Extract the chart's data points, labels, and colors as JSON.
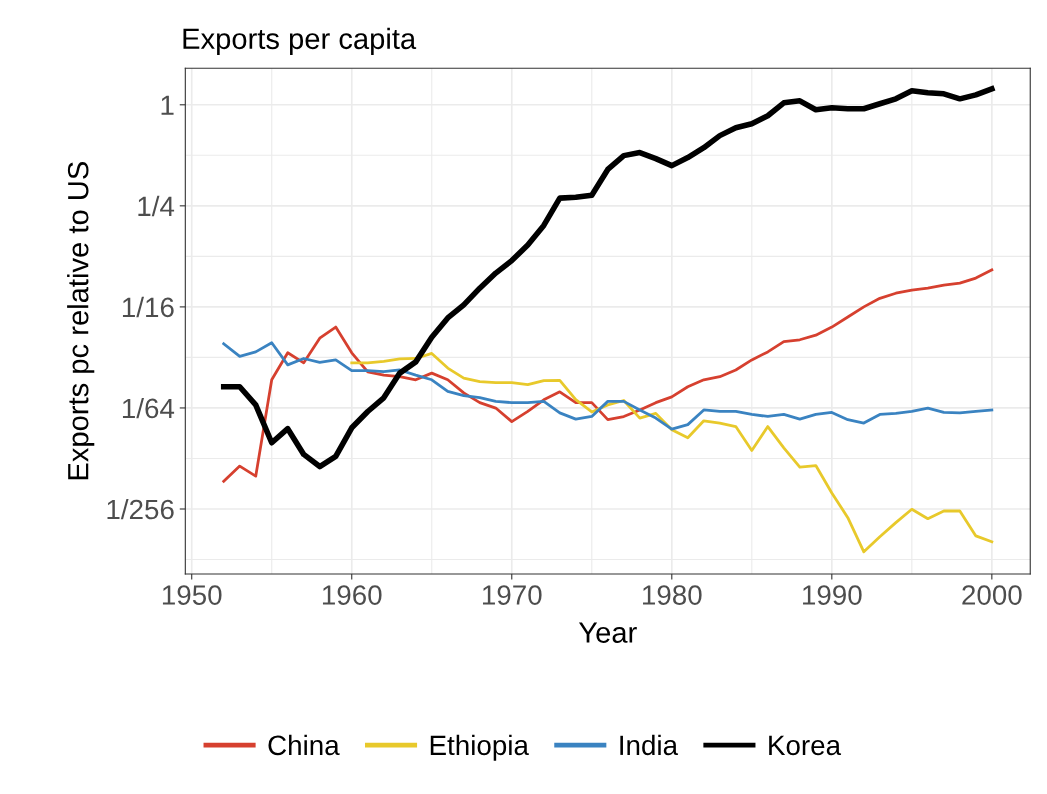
{
  "chart_data": {
    "type": "line",
    "title": "Exports per capita",
    "xlabel": "Year",
    "ylabel": "Exports pc relative to US",
    "x": [
      1952,
      1953,
      1954,
      1955,
      1956,
      1957,
      1958,
      1959,
      1960,
      1961,
      1962,
      1963,
      1964,
      1965,
      1966,
      1967,
      1968,
      1969,
      1970,
      1971,
      1972,
      1973,
      1974,
      1975,
      1976,
      1977,
      1978,
      1979,
      1980,
      1981,
      1982,
      1983,
      1984,
      1985,
      1986,
      1987,
      1988,
      1989,
      1990,
      1991,
      1992,
      1993,
      1994,
      1995,
      1996,
      1997,
      1998,
      1999,
      2000
    ],
    "series": [
      {
        "name": "China",
        "color": "#d6402f",
        "values": [
          0.00572,
          0.00704,
          0.00613,
          0.023,
          0.0333,
          0.029,
          0.0407,
          0.0474,
          0.0333,
          0.0256,
          0.0245,
          0.024,
          0.023,
          0.0252,
          0.023,
          0.0192,
          0.0168,
          0.0156,
          0.01296,
          0.0149,
          0.01746,
          0.0195,
          0.0168,
          0.0168,
          0.01332,
          0.01389,
          0.0152,
          0.0168,
          0.0182,
          0.0209,
          0.023,
          0.024,
          0.0263,
          0.0302,
          0.0337,
          0.0388,
          0.0398,
          0.0424,
          0.0474,
          0.0544,
          0.0625,
          0.0703,
          0.0754,
          0.0786,
          0.0808,
          0.0842,
          0.0866,
          0.0928,
          0.1037
        ]
      },
      {
        "name": "Ethiopia",
        "color": "#e8c92b",
        "values": [
          null,
          null,
          null,
          null,
          null,
          null,
          null,
          null,
          0.029,
          0.029,
          0.0296,
          0.0306,
          0.0308,
          0.033,
          0.027,
          0.0235,
          0.0224,
          0.0221,
          0.0221,
          0.0215,
          0.0227,
          0.0228,
          0.0175,
          0.0148,
          0.0163,
          0.0173,
          0.0136,
          0.0145,
          0.0116,
          0.01038,
          0.0131,
          0.0127,
          0.0121,
          0.00872,
          0.0121,
          0.00904,
          0.00694,
          0.00709,
          0.00487,
          0.00347,
          0.00217,
          0.00267,
          0.00324,
          0.00389,
          0.00342,
          0.0038,
          0.0038,
          0.0027,
          0.00249
        ]
      },
      {
        "name": "India",
        "color": "#3a83c1",
        "values": [
          0.0377,
          0.0317,
          0.0337,
          0.0382,
          0.0282,
          0.0308,
          0.0292,
          0.0302,
          0.0261,
          0.0261,
          0.0257,
          0.0263,
          0.0245,
          0.023,
          0.0196,
          0.0185,
          0.018,
          0.0171,
          0.0168,
          0.0168,
          0.0171,
          0.0146,
          0.0134,
          0.0139,
          0.0171,
          0.0171,
          0.0152,
          0.0136,
          0.01168,
          0.01243,
          0.0152,
          0.0149,
          0.0149,
          0.0143,
          0.0139,
          0.0143,
          0.0134,
          0.0143,
          0.0147,
          0.0133,
          0.0127,
          0.0143,
          0.0145,
          0.0149,
          0.0156,
          0.0147,
          0.0146,
          0.0149,
          0.0152
        ]
      },
      {
        "name": "Korea",
        "color": "#000000",
        "values": [
          0.0209,
          0.0209,
          0.0163,
          0.00969,
          0.01176,
          0.00826,
          0.00699,
          0.00803,
          0.0119,
          0.01488,
          0.01795,
          0.0252,
          0.0294,
          0.0412,
          0.0537,
          0.0643,
          0.0808,
          0.0994,
          0.118,
          0.146,
          0.191,
          0.278,
          0.281,
          0.289,
          0.412,
          0.498,
          0.519,
          0.478,
          0.434,
          0.485,
          0.555,
          0.655,
          0.73,
          0.771,
          0.86,
          1.027,
          1.056,
          0.934,
          0.96,
          0.947,
          0.947,
          1.014,
          1.085,
          1.211,
          1.178,
          1.162,
          1.085,
          1.146,
          1.245
        ]
      }
    ],
    "log": "y",
    "xlim": [
      1949.6,
      2002.4
    ],
    "ylim": [
      0.0016,
      1.65
    ],
    "xticks": [
      1950,
      1960,
      1970,
      1980,
      1990,
      2000
    ],
    "yticks": [
      1,
      {
        "value": 0.25,
        "label": "1/4"
      },
      {
        "value": 0.0625,
        "label": "1/16"
      },
      {
        "value": 0.015625,
        "label": "1/64"
      },
      {
        "value": 0.00390625,
        "label": "1/256"
      }
    ],
    "grid": true,
    "legend": "bottom"
  }
}
